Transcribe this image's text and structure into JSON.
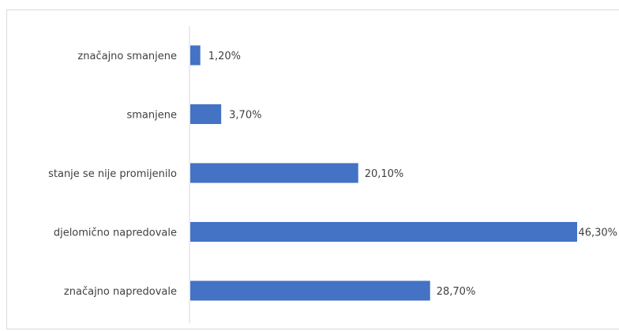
{
  "chart_data": {
    "type": "bar",
    "orientation": "horizontal",
    "categories": [
      "značajno smanjene",
      "smanjene",
      "stanje se nije promijenilo",
      "djelomično napredovale",
      "značajno napredovale"
    ],
    "values": [
      1.2,
      3.7,
      20.1,
      46.3,
      28.7
    ],
    "value_labels": [
      "1,20%",
      "3,70%",
      "20,10%",
      "46,30%",
      "28,70%"
    ],
    "unit": "%",
    "title": "",
    "xlabel": "",
    "ylabel": "",
    "xlim": [
      0,
      46.3
    ],
    "grid": false,
    "legend": "none",
    "colors": {
      "bar": "#4472c4",
      "axis": "#d9d9d9",
      "text": "#404040"
    }
  }
}
